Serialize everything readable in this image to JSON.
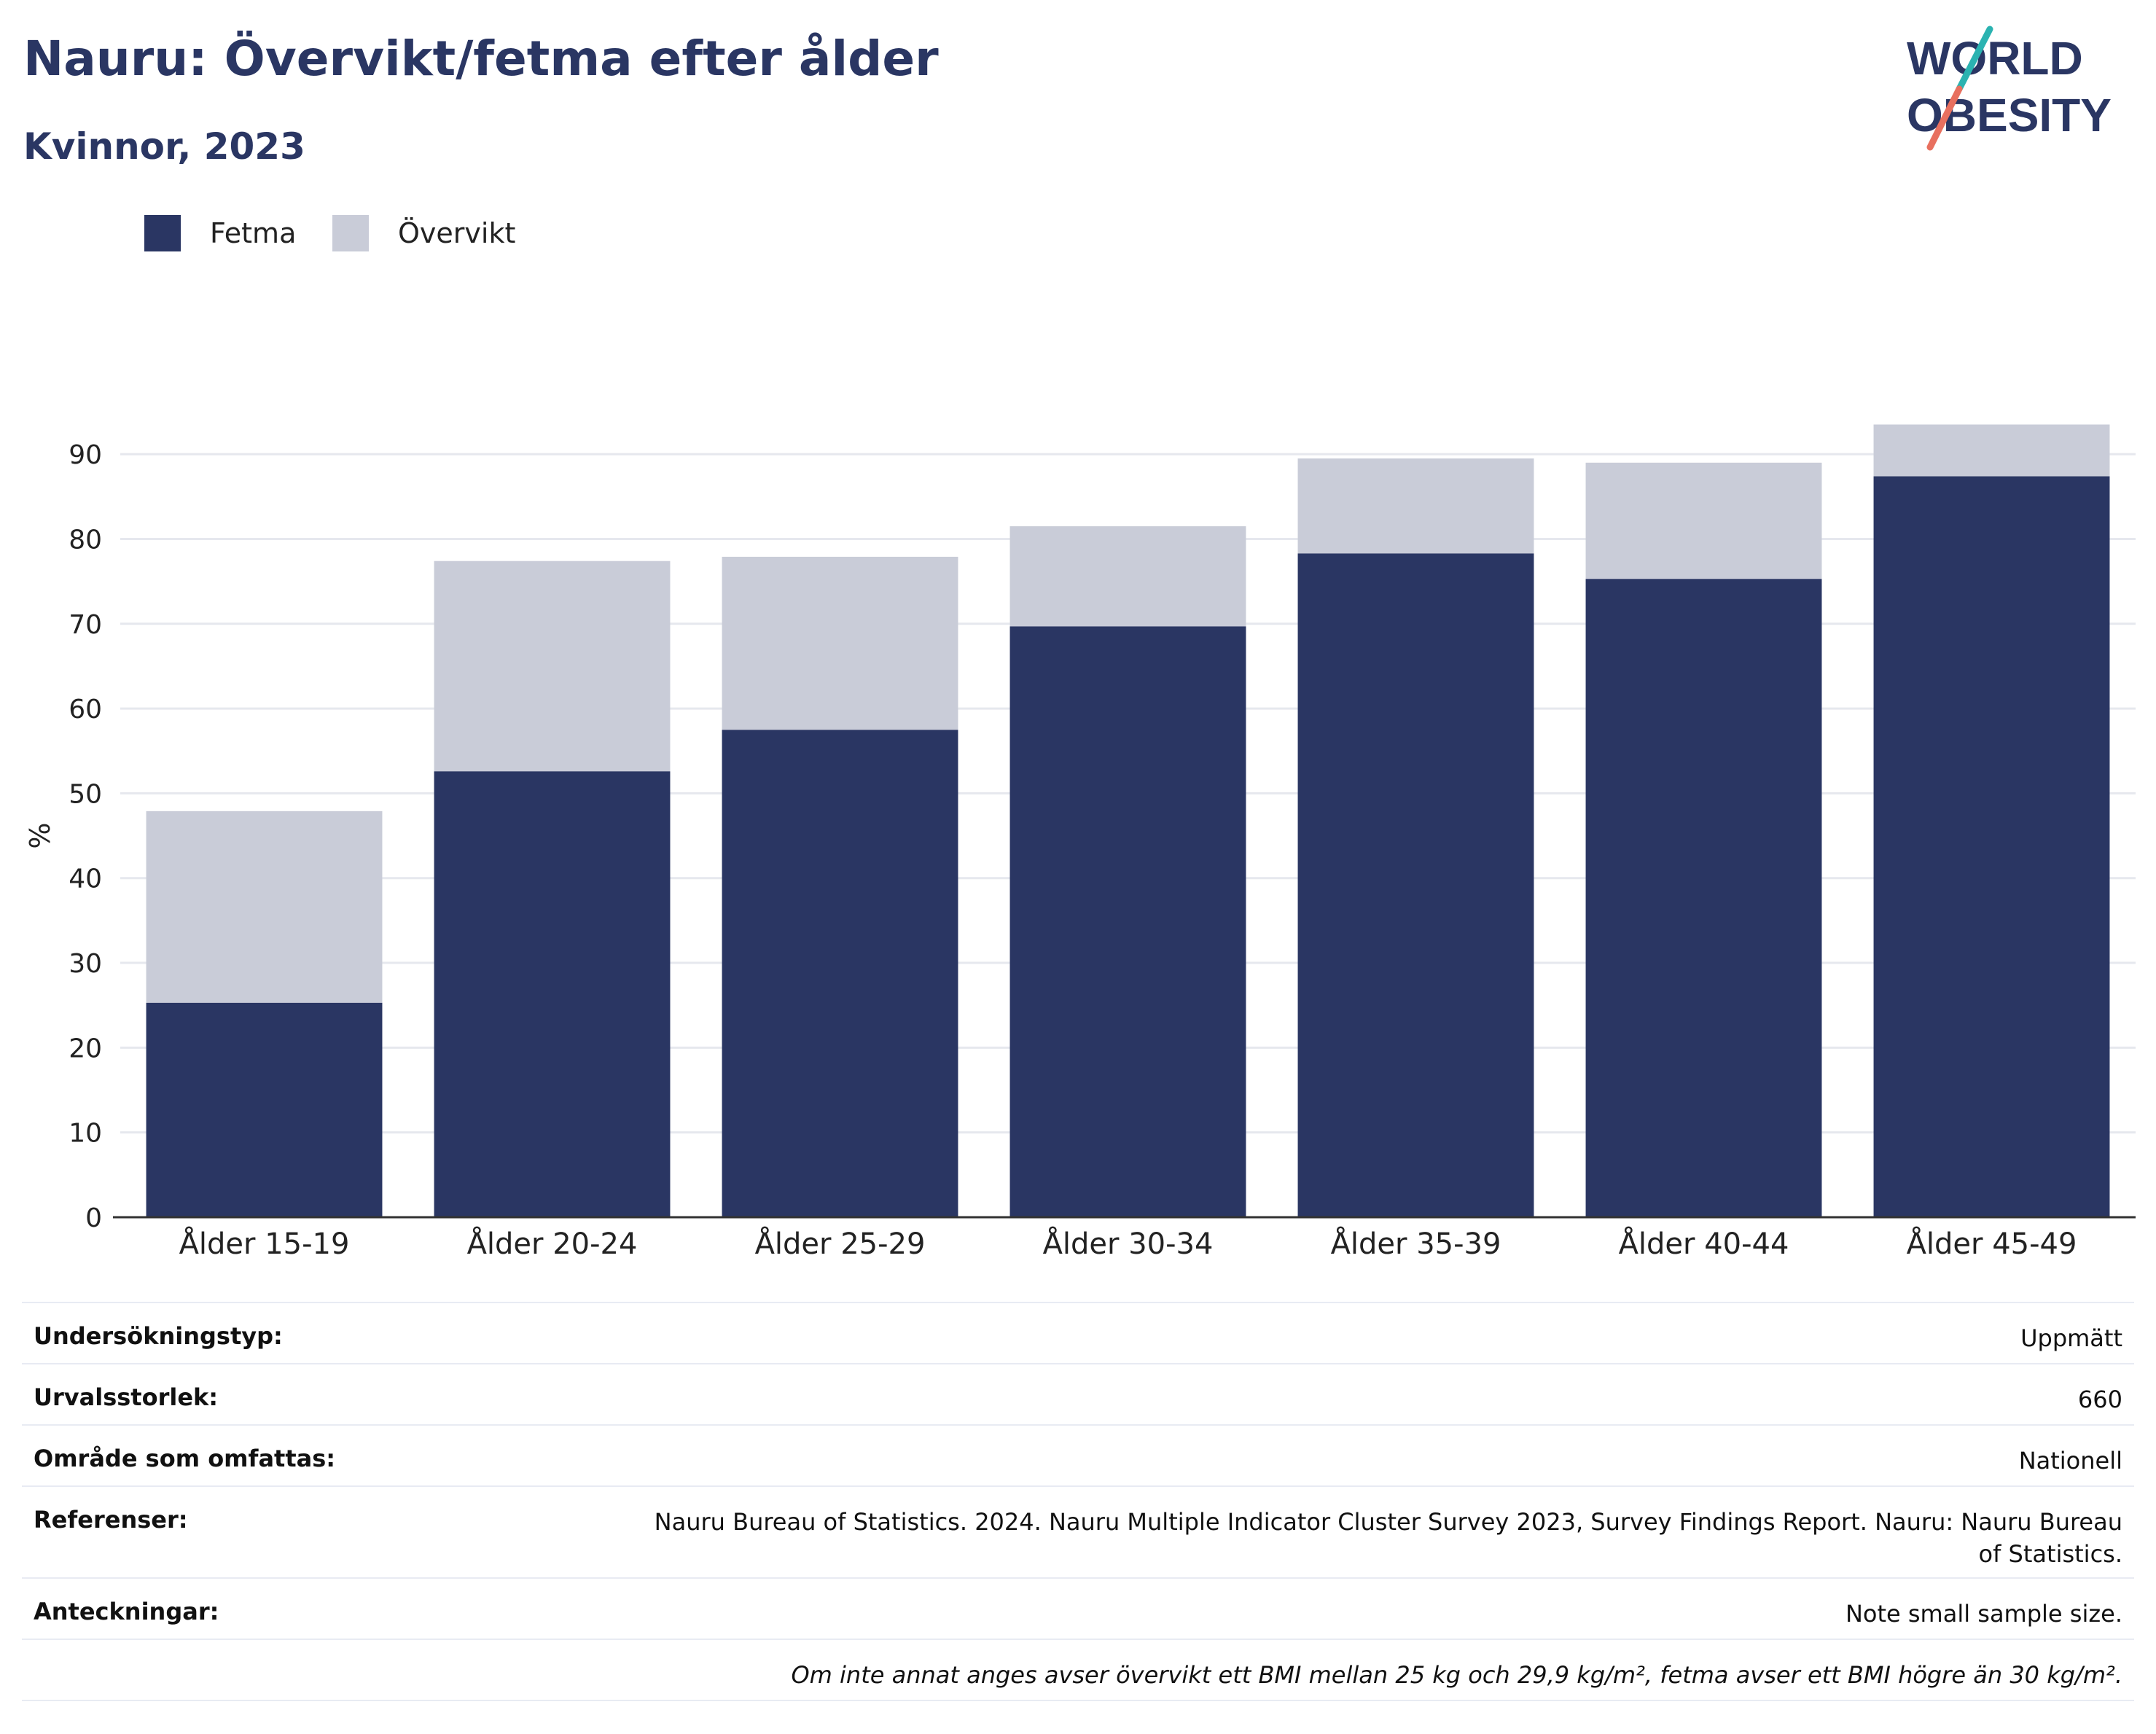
{
  "title": "Nauru: Övervikt/fetma efter ålder",
  "subtitle": "Kvinnor, 2023",
  "logo": {
    "line1": "WORLD",
    "line2": "OBESITY",
    "accent_teal": "#2bb3b1",
    "accent_coral": "#e8705f"
  },
  "colors": {
    "fetma": "#2a3663",
    "overvikt": "#c9ccd8",
    "text": "#2a3663"
  },
  "legend": [
    {
      "label": "Fetma",
      "color": "#2a3663"
    },
    {
      "label": "Övervikt",
      "color": "#c9ccd8"
    }
  ],
  "chart_data": {
    "type": "bar",
    "stacked": true,
    "categories": [
      "Ålder 15-19",
      "Ålder 20-24",
      "Ålder 25-29",
      "Ålder 30-34",
      "Ålder 35-39",
      "Ålder 40-44",
      "Ålder 45-49"
    ],
    "series": [
      {
        "name": "Fetma",
        "values": [
          25.3,
          52.6,
          57.5,
          69.7,
          78.3,
          75.3,
          87.4
        ]
      },
      {
        "name": "Övervikt",
        "values": [
          22.6,
          24.8,
          20.4,
          11.8,
          11.2,
          13.7,
          6.1
        ]
      }
    ],
    "ylabel": "%",
    "ylim": [
      0,
      95
    ],
    "yticks": [
      0,
      10,
      20,
      30,
      40,
      50,
      60,
      70,
      80,
      90
    ],
    "grid": true,
    "legend_position": "top-left"
  },
  "info": [
    {
      "key": "Undersökningstyp:",
      "value": "Uppmätt"
    },
    {
      "key": "Urvalsstorlek:",
      "value": "660"
    },
    {
      "key": "Område som omfattas:",
      "value": "Nationell"
    },
    {
      "key": "Referenser:",
      "value": "Nauru Bureau of Statistics. 2024. Nauru Multiple Indicator Cluster Survey 2023, Survey Findings Report. Nauru: Nauru Bureau of Statistics."
    },
    {
      "key": "Anteckningar:",
      "value": "Note small sample size."
    }
  ],
  "footnote": "Om inte annat anges avser övervikt ett BMI mellan 25 kg och 29,9 kg/m², fetma avser ett BMI högre än 30 kg/m²."
}
